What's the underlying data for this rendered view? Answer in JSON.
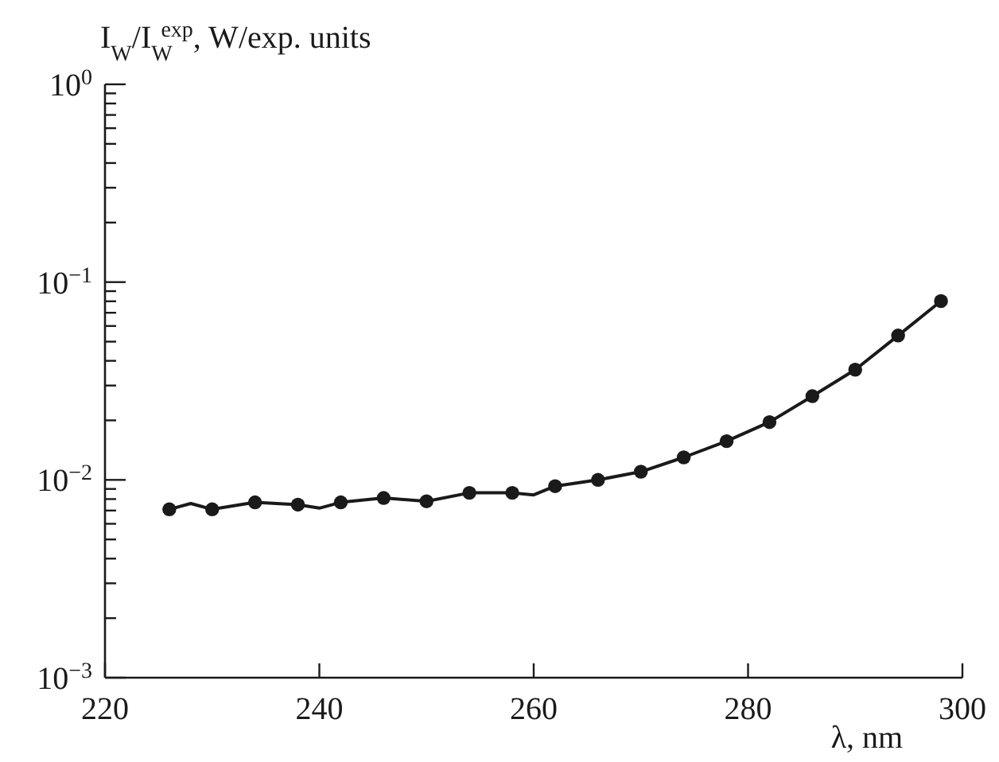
{
  "chart_data": {
    "type": "line",
    "xlabel": "λ, nm",
    "ylabel": "I$_{W}$/I$_{W}$$^{exp}$, W/exp. units",
    "log": "y",
    "grid": false,
    "xlim": [
      220,
      300
    ],
    "xticks": [
      220,
      240,
      260,
      280,
      300
    ],
    "ylim": [
      0.001,
      1
    ],
    "yticks": [
      {
        "value": 0.001,
        "label": "10$^{−3}$"
      },
      {
        "value": 0.002,
        "label": null
      },
      {
        "value": 0.003,
        "label": null
      },
      {
        "value": 0.004,
        "label": null
      },
      {
        "value": 0.005,
        "label": null
      },
      {
        "value": 0.006,
        "label": null
      },
      {
        "value": 0.007,
        "label": null
      },
      {
        "value": 0.008,
        "label": null
      },
      {
        "value": 0.009,
        "label": null
      },
      {
        "value": 0.01,
        "label": "10$^{−2}$"
      },
      {
        "value": 0.02,
        "label": null
      },
      {
        "value": 0.03,
        "label": null
      },
      {
        "value": 0.04,
        "label": null
      },
      {
        "value": 0.05,
        "label": null
      },
      {
        "value": 0.06,
        "label": null
      },
      {
        "value": 0.07,
        "label": null
      },
      {
        "value": 0.08,
        "label": null
      },
      {
        "value": 0.09,
        "label": null
      },
      {
        "value": 0.1,
        "label": "10$^{−1}$"
      },
      {
        "value": 0.2,
        "label": null
      },
      {
        "value": 0.3,
        "label": null
      },
      {
        "value": 0.4,
        "label": null
      },
      {
        "value": 0.5,
        "label": null
      },
      {
        "value": 0.6,
        "label": null
      },
      {
        "value": 0.7,
        "label": null
      },
      {
        "value": 0.8,
        "label": null
      },
      {
        "value": 0.9,
        "label": null
      },
      {
        "value": 1,
        "label": "10$^{0}$"
      }
    ],
    "series": [
      {
        "marker": "none",
        "color": "#1a1a1a",
        "x": [
          226,
          228,
          230,
          234,
          238,
          240,
          242,
          246,
          250,
          254,
          258,
          260,
          262,
          266,
          270,
          274,
          278,
          282,
          286,
          290,
          294,
          298
        ],
        "values": [
          0.0071,
          0.0076,
          0.0071,
          0.0077,
          0.0075,
          0.0072,
          0.0077,
          0.0081,
          0.0078,
          0.0086,
          0.0086,
          0.0084,
          0.0093,
          0.01,
          0.011,
          0.013,
          0.0157,
          0.0196,
          0.0265,
          0.0361,
          0.0537,
          0.0802
        ]
      },
      {
        "type": "scatter",
        "marker": "circle",
        "color": "#1a1a1a",
        "x": [
          226,
          230,
          234,
          238,
          242,
          246,
          250,
          254,
          258,
          262,
          266,
          270,
          274,
          278,
          282,
          286,
          290,
          294,
          298
        ],
        "values": [
          0.0071,
          0.0071,
          0.0077,
          0.0075,
          0.0077,
          0.0081,
          0.0078,
          0.0086,
          0.0086,
          0.0093,
          0.01,
          0.011,
          0.013,
          0.0157,
          0.0196,
          0.0265,
          0.0361,
          0.0537,
          0.0802
        ]
      }
    ]
  }
}
